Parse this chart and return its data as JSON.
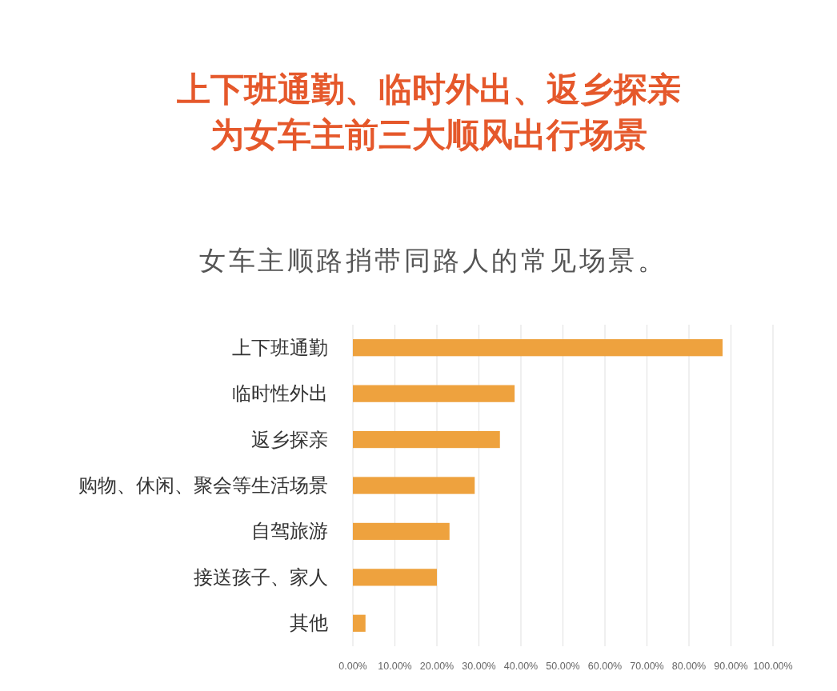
{
  "chart_data": {
    "type": "bar",
    "orientation": "horizontal",
    "title": "上下班通勤、临时外出、返乡探亲为女车主前三大顺风出行场景",
    "subtitle": "女车主顺路捎带同路人的常见场景。",
    "categories": [
      "上下班通勤",
      "临时性外出",
      "返乡探亲",
      "购物、休闲、聚会等生活场景",
      "自驾旅游",
      "接送孩子、家人",
      "其他"
    ],
    "values": [
      88,
      38.5,
      35,
      29,
      23,
      20,
      3
    ],
    "color": "#eea23e",
    "xlim": [
      0,
      100
    ],
    "xticks": [
      {
        "value": 0,
        "label": "0.00%"
      },
      {
        "value": 10,
        "label": "10.00%"
      },
      {
        "value": 20,
        "label": "20.00%"
      },
      {
        "value": 30,
        "label": "30.00%"
      },
      {
        "value": 40,
        "label": "40.00%"
      },
      {
        "value": 50,
        "label": "50.00%"
      },
      {
        "value": 60,
        "label": "60.00%"
      },
      {
        "value": 70,
        "label": "70.00%"
      },
      {
        "value": 80,
        "label": "80.00%"
      },
      {
        "value": 90,
        "label": "90.00%"
      },
      {
        "value": 100,
        "label": "100.00%"
      }
    ],
    "grid": "x"
  }
}
